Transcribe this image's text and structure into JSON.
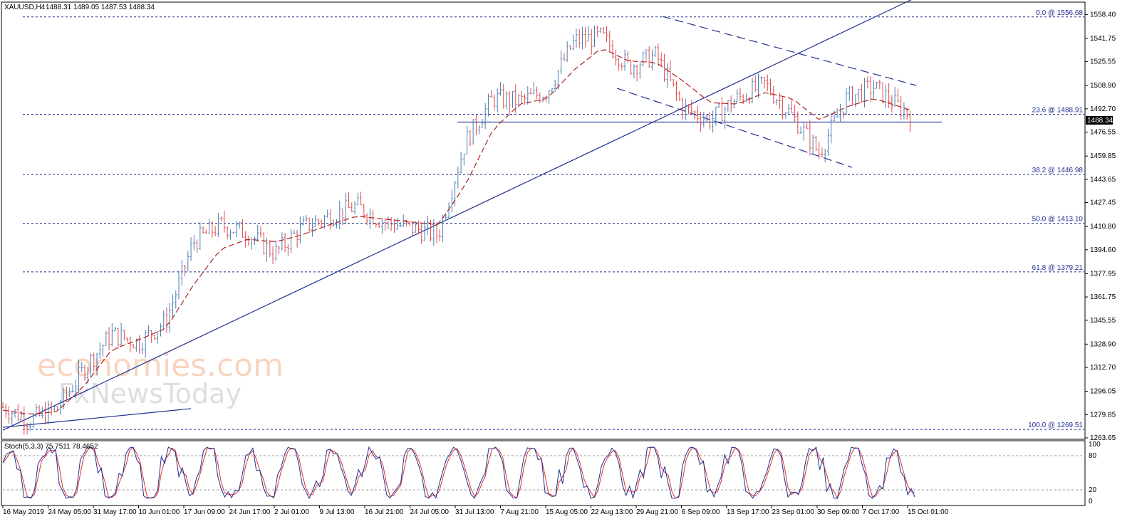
{
  "header": {
    "symbol_timeframe": "XAUUSD,H4",
    "ohlc": "1488.31 1489.05 1487.53 1488.34"
  },
  "watermark": {
    "line1": "economies.com",
    "line2": "FxNewsToday"
  },
  "colors": {
    "bull": "#4a7fb5",
    "bear": "#e04a4a",
    "ma": "#b22222",
    "lines": "#1f2f8f",
    "stoch_main": "#1f2f8f",
    "stoch_signal": "#e03030"
  },
  "chart_data": {
    "type": "line",
    "title": "XAUUSD,H4",
    "ylim": [
      1263.65,
      1566.0
    ],
    "y_ticks": [
      "1558.40",
      "1541.75",
      "1525.55",
      "1508.90",
      "1492.70",
      "1476.55",
      "1459.85",
      "1443.65",
      "1427.45",
      "1410.80",
      "1394.60",
      "1377.95",
      "1361.75",
      "1345.55",
      "1328.90",
      "1312.70",
      "1296.05",
      "1279.85",
      "1263.65"
    ],
    "current_price": "1488.34",
    "x_ticks": [
      "16 May 2019",
      "24 May 05:00",
      "31 May 17:00",
      "10 Jun 01:00",
      "17 Jun 09:00",
      "24 Jun 17:00",
      "2 Jul 01:00",
      "9 Jul 13:00",
      "16 Jul 21:00",
      "24 Jul 05:00",
      "31 Jul 13:00",
      "7 Aug 21:00",
      "15 Aug 05:00",
      "22 Aug 13:00",
      "29 Aug 21:00",
      "6 Sep 09:00",
      "13 Sep 17:00",
      "23 Sep 01:00",
      "30 Sep 09:00",
      "7 Oct 17:00",
      "15 Oct 01:00"
    ],
    "series": [
      {
        "name": "XAUUSD",
        "x": [
          0,
          0.03,
          0.06,
          0.09,
          0.12,
          0.15,
          0.18,
          0.21,
          0.24,
          0.27,
          0.3,
          0.33,
          0.36,
          0.39,
          0.42,
          0.45,
          0.48,
          0.51,
          0.54,
          0.57,
          0.6,
          0.63,
          0.66,
          0.69,
          0.72,
          0.75,
          0.78,
          0.81,
          0.84,
          0.87,
          0.9,
          0.93,
          0.96,
          1.0
        ],
        "values": [
          1285,
          1276,
          1284,
          1312,
          1336,
          1330,
          1345,
          1400,
          1412,
          1406,
          1392,
          1410,
          1418,
          1425,
          1414,
          1410,
          1405,
          1470,
          1500,
          1498,
          1505,
          1540,
          1543,
          1522,
          1530,
          1493,
          1485,
          1500,
          1510,
          1488,
          1462,
          1500,
          1508,
          1488
        ]
      }
    ],
    "moving_average": [
      1283,
      1280,
      1282,
      1300,
      1325,
      1332,
      1340,
      1370,
      1395,
      1402,
      1400,
      1405,
      1412,
      1418,
      1416,
      1414,
      1412,
      1440,
      1478,
      1496,
      1500,
      1520,
      1535,
      1526,
      1525,
      1512,
      1497,
      1496,
      1504,
      1500,
      1485,
      1494,
      1500,
      1492
    ],
    "fibonacci_levels": [
      {
        "label": "0.0 @ 1556.68",
        "value": 1556.68
      },
      {
        "label": "23.6 @ 1488.91",
        "value": 1488.91
      },
      {
        "label": "38.2 @ 1446.98",
        "value": 1446.98
      },
      {
        "label": "50.0 @ 1413.10",
        "value": 1413.1
      },
      {
        "label": "61.8 @ 1379.21",
        "value": 1379.21
      },
      {
        "label": "100.0 @ 1269.51",
        "value": 1269.51
      }
    ],
    "horizontal_support": 1483.5,
    "trendline": {
      "start": 1269.0,
      "end": 1590.0
    },
    "early_trendline": {
      "start": 1271.0,
      "end": 1284.0
    },
    "channel_upper": {
      "start": 1557.0,
      "end": 1509.0
    },
    "channel_lower": {
      "start": 1507.0,
      "end": 1452.0
    },
    "stochastic": {
      "label": "Stoch(5,3,3) 75.7511 78.4652",
      "levels": [
        "100",
        "80",
        "20",
        "0"
      ],
      "ylim": [
        0,
        100
      ]
    }
  }
}
